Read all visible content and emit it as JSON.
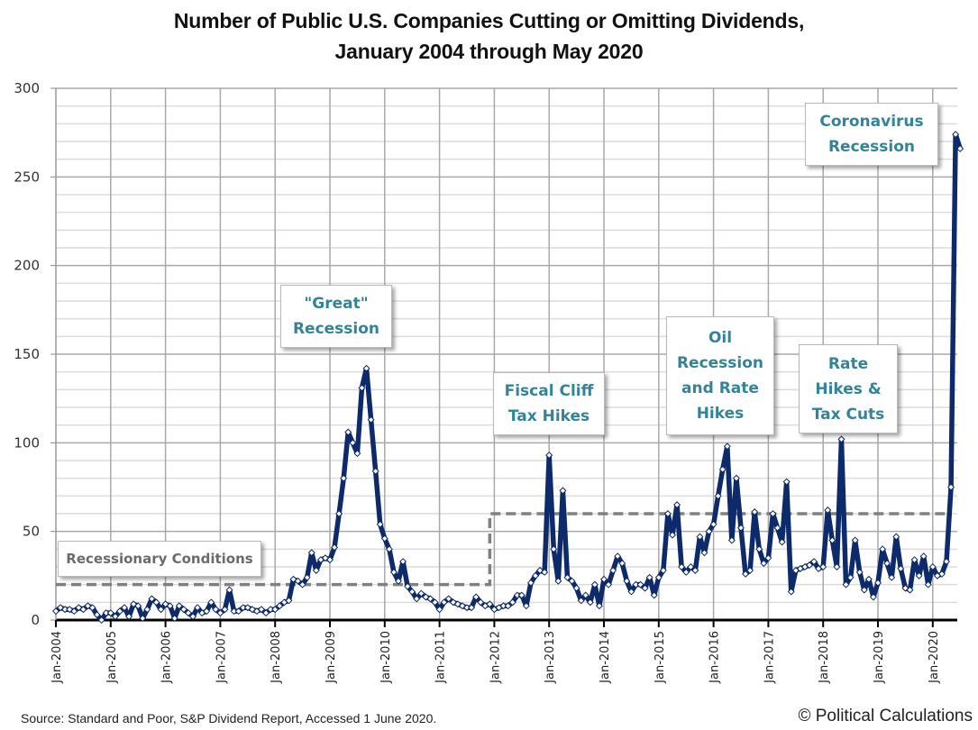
{
  "chart_data": {
    "type": "line",
    "title": "Number of Public U.S. Companies Cutting or Omitting Dividends,",
    "subtitle": "January 2004 through May 2020",
    "xlabel": "",
    "ylabel": "",
    "ylim": [
      0,
      300
    ],
    "yticks": [
      0,
      50,
      100,
      150,
      200,
      250,
      300
    ],
    "minor_grid_step": 10,
    "grid": true,
    "legend": "none",
    "x_start": "Jan-2004",
    "x_end": "May-2020",
    "xtick_labels": [
      "Jan-2004",
      "Jan-2005",
      "Jan-2006",
      "Jan-2007",
      "Jan-2008",
      "Jan-2009",
      "Jan-2010",
      "Jan-2011",
      "Jan-2012",
      "Jan-2013",
      "Jan-2014",
      "Jan-2015",
      "Jan-2016",
      "Jan-2017",
      "Jan-2018",
      "Jan-2019",
      "Jan-2020"
    ],
    "series": [
      {
        "name": "Companies cutting or omitting dividends",
        "color": "#0d2a6b",
        "values": [
          5,
          7,
          6,
          6,
          5,
          7,
          6,
          8,
          7,
          3,
          0,
          4,
          4,
          2,
          5,
          7,
          2,
          9,
          8,
          1,
          6,
          12,
          10,
          6,
          9,
          8,
          1,
          8,
          6,
          4,
          2,
          7,
          4,
          5,
          10,
          6,
          4,
          6,
          17,
          5,
          5,
          7,
          7,
          6,
          5,
          6,
          4,
          6,
          6,
          8,
          10,
          11,
          23,
          22,
          20,
          24,
          38,
          28,
          34,
          35,
          34,
          41,
          60,
          80,
          106,
          100,
          94,
          131,
          142,
          113,
          84,
          54,
          46,
          40,
          27,
          22,
          33,
          19,
          16,
          12,
          15,
          13,
          12,
          10,
          6,
          10,
          12,
          10,
          9,
          8,
          7,
          7,
          13,
          10,
          8,
          9,
          6,
          7,
          8,
          8,
          10,
          14,
          14,
          8,
          21,
          25,
          28,
          27,
          93,
          40,
          22,
          73,
          24,
          22,
          18,
          11,
          14,
          10,
          20,
          8,
          23,
          20,
          28,
          36,
          32,
          22,
          16,
          20,
          20,
          18,
          24,
          14,
          24,
          28,
          60,
          48,
          65,
          30,
          27,
          30,
          28,
          47,
          38,
          50,
          54,
          70,
          85,
          98,
          45,
          80,
          52,
          26,
          28,
          61,
          40,
          32,
          35,
          60,
          52,
          44,
          78,
          16,
          28,
          29,
          30,
          31,
          33,
          29,
          30,
          62,
          45,
          30,
          102,
          20,
          24,
          45,
          27,
          17,
          23,
          13,
          21,
          40,
          32,
          24,
          47,
          29,
          18,
          17,
          34,
          25,
          36,
          20,
          30,
          25,
          26,
          33,
          75,
          274,
          266
        ]
      },
      {
        "name": "Recessionary Conditions threshold",
        "color": "#808080",
        "style": "dashed",
        "segments": [
          {
            "from": "Jan-2004",
            "to": "Dec-2011",
            "value": 20
          },
          {
            "from": "Dec-2011",
            "to": "May-2020",
            "value": 60
          }
        ]
      }
    ],
    "annotations": [
      {
        "id": "recessionary",
        "text": "Recessionary Conditions",
        "style": "gray"
      },
      {
        "id": "great",
        "text": "\"Great\"\nRecession",
        "style": "teal"
      },
      {
        "id": "fiscal",
        "text": "Fiscal Cliff\nTax Hikes",
        "style": "teal"
      },
      {
        "id": "oil",
        "text": "Oil\nRecession\nand Rate\nHikes",
        "style": "teal"
      },
      {
        "id": "ratehikes",
        "text": "Rate\nHikes &\nTax Cuts",
        "style": "teal"
      },
      {
        "id": "corona",
        "text": "Coronavirus\nRecession",
        "style": "teal"
      }
    ]
  },
  "footer": {
    "source": "Source:  Standard and Poor,  S&P Dividend  Report,  Accessed 1 June  2020.",
    "credit": "© Political Calculations"
  }
}
